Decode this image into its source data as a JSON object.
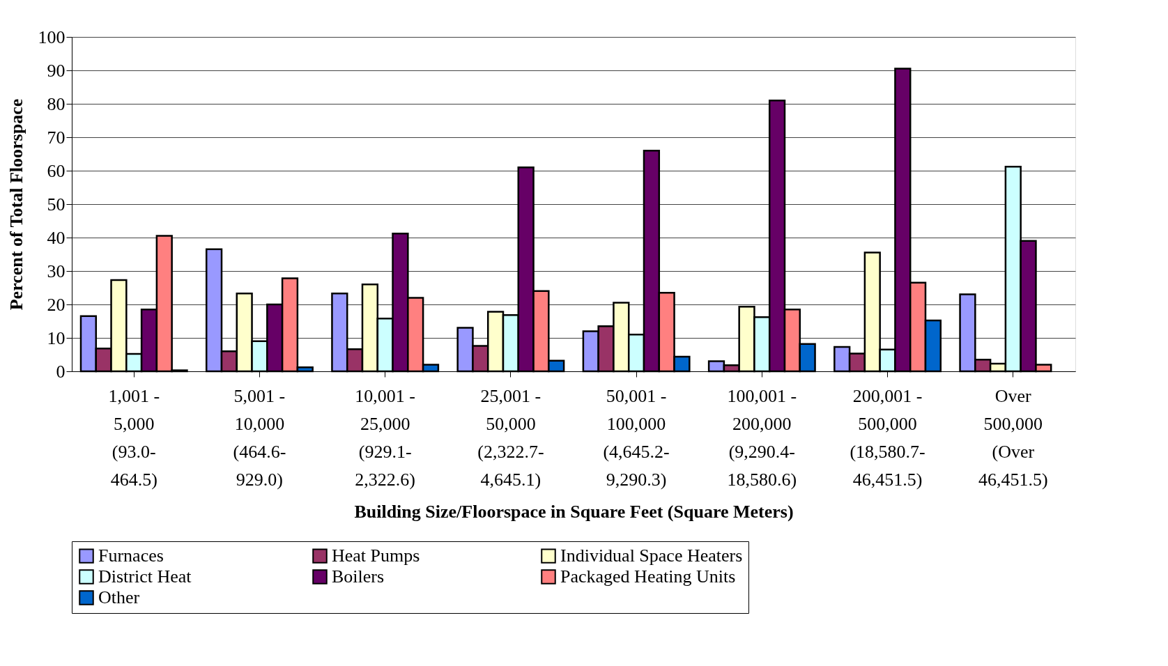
{
  "chart_data": {
    "type": "bar",
    "xlabel": "Building Size/Floorspace in Square Feet (Square Meters)",
    "ylabel": "Percent of Total Floorspace",
    "categories": [
      "1,001 - 5,000 (93.0-464.5)",
      "5,001 - 10,000 (464.6-929.0)",
      "10,001 - 25,000 (929.1-2,322.6)",
      "25,001 - 50,000 (2,322.7-4,645.1)",
      "50,001 - 100,000 (4,645.2-9,290.3)",
      "100,001 - 200,000 (9,290.4-18,580.6)",
      "200,001 - 500,000 (18,580.7-46,451.5)",
      "Over 500,000 (Over 46,451.5)"
    ],
    "series": [
      {
        "name": "Furnaces",
        "color": "#9999ff",
        "values": [
          16.5,
          36.5,
          23.3,
          13,
          12,
          3,
          7.3,
          23
        ]
      },
      {
        "name": "Heat Pumps",
        "color": "#993366",
        "values": [
          6.8,
          6,
          6.6,
          7.6,
          13.5,
          1.8,
          5.3,
          3.5
        ]
      },
      {
        "name": "Individual Space Heaters",
        "color": "#ffffcc",
        "values": [
          27.3,
          23.3,
          26,
          17.8,
          20.5,
          19.3,
          35.5,
          2.3
        ]
      },
      {
        "name": "District Heat",
        "color": "#ccffff",
        "values": [
          5.2,
          9,
          15.8,
          16.8,
          11,
          16.2,
          6.5,
          61.2
        ]
      },
      {
        "name": "Boilers",
        "color": "#660066",
        "values": [
          18.5,
          20,
          41.2,
          61,
          66,
          81,
          90.5,
          39
        ]
      },
      {
        "name": "Packaged Heating Units",
        "color": "#ff8080",
        "values": [
          40.5,
          27.8,
          22,
          24,
          23.5,
          18.5,
          26.5,
          2
        ]
      },
      {
        "name": "Other",
        "color": "#0066cc",
        "values": [
          0.3,
          1.2,
          2,
          3.2,
          4.4,
          8.2,
          15.2,
          null
        ]
      }
    ],
    "ylim": [
      0,
      100
    ],
    "yticks": [
      0,
      10,
      20,
      30,
      40,
      50,
      60,
      70,
      80,
      90,
      100
    ],
    "grid": "y",
    "legend": "bottom"
  }
}
